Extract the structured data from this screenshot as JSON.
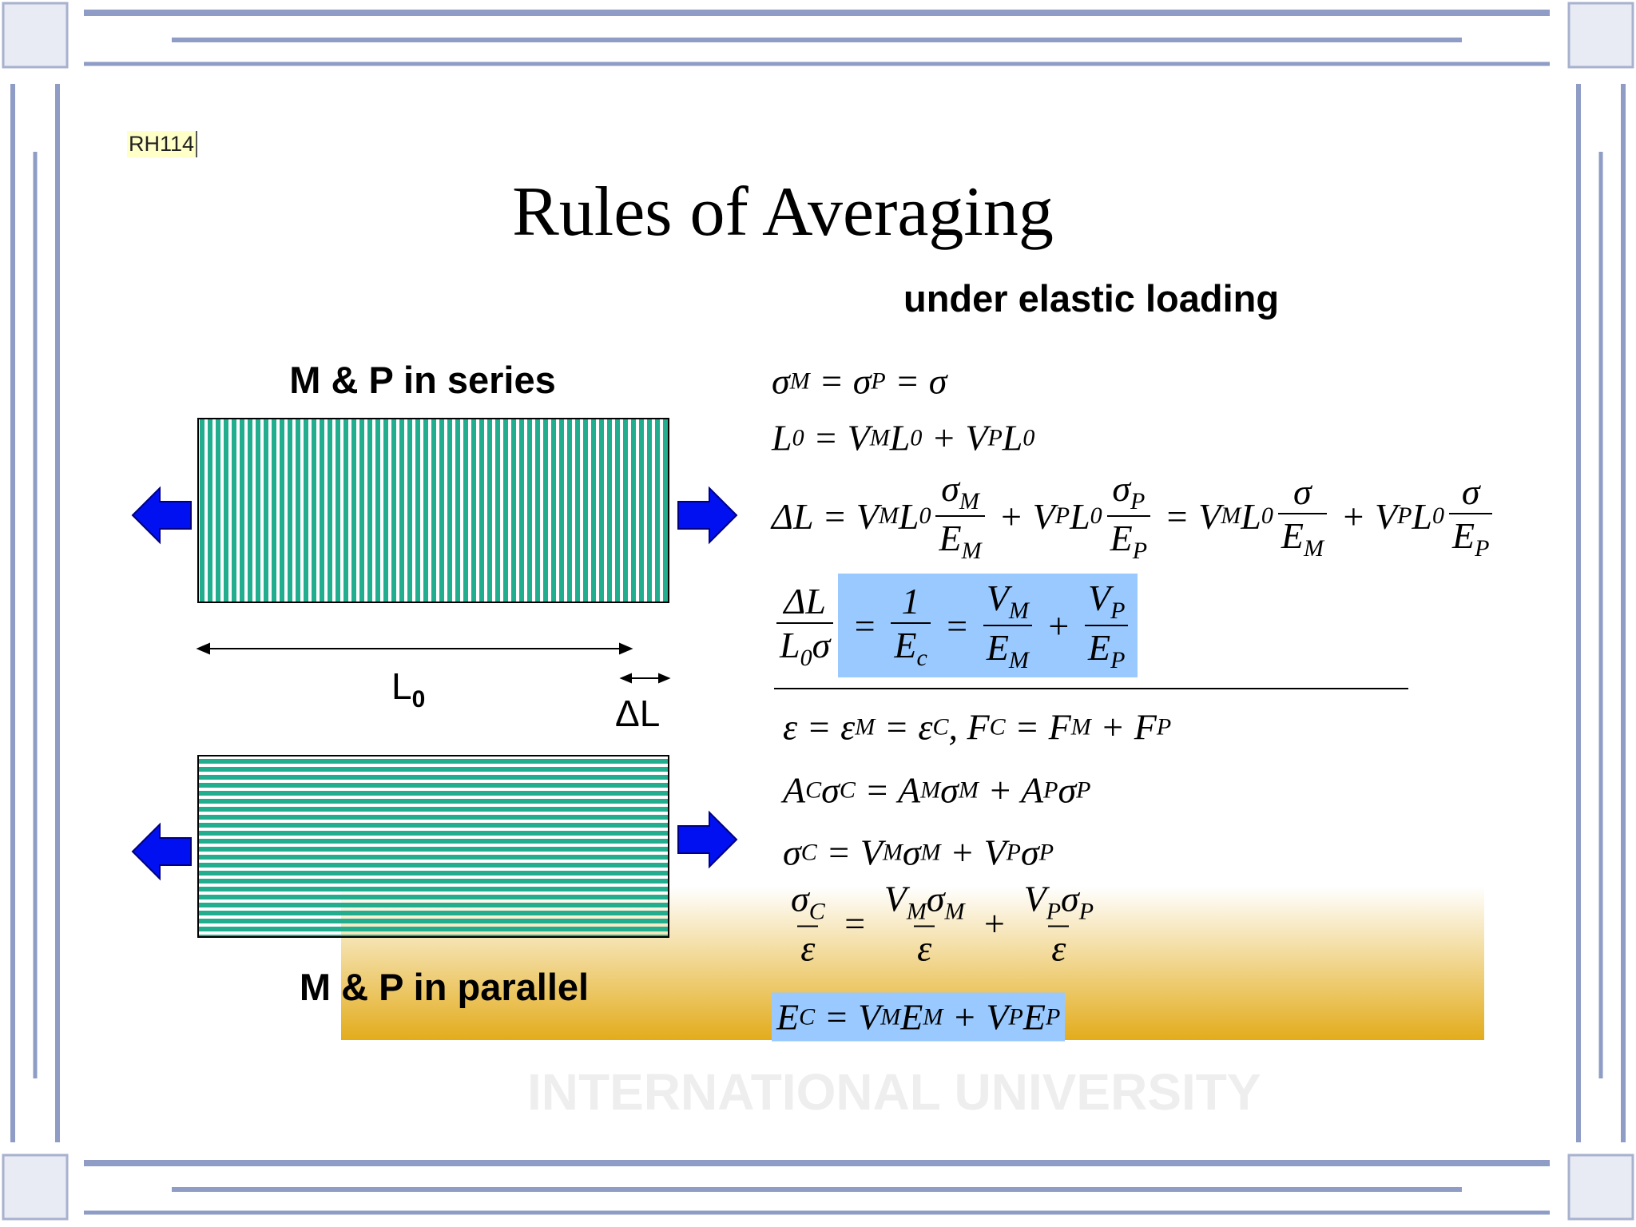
{
  "tag": "RH114",
  "title": "Rules of Averaging",
  "subtitle": "under elastic loading",
  "series": {
    "label": "M & P in series",
    "length": [
      "L",
      {
        "sub": "0"
      }
    ],
    "delta": "ΔL"
  },
  "parallel": {
    "label": "M & P in parallel"
  },
  "watermark": "INTERNATIONAL UNIVERSITY",
  "equations": [
    [
      "σ",
      {
        "sub": "M"
      },
      " = σ",
      {
        "sub": "P"
      },
      " = σ"
    ],
    [
      "L",
      {
        "sub": "0"
      },
      " = V",
      {
        "sub": "M"
      },
      "L",
      {
        "sub": "0"
      },
      " + V",
      {
        "sub": "P"
      },
      "L",
      {
        "sub": "0"
      }
    ],
    [
      "ΔL = V",
      {
        "sub": "M"
      },
      "L",
      {
        "sub": "0"
      },
      {
        "frac": [
          [
            "σ",
            {
              "sub": "M"
            }
          ],
          [
            "E",
            {
              "sub": "M"
            }
          ]
        ]
      },
      " + V",
      {
        "sub": "P"
      },
      "L",
      {
        "sub": "0"
      },
      {
        "frac": [
          [
            "σ",
            {
              "sub": "P"
            }
          ],
          [
            "E",
            {
              "sub": "P"
            }
          ]
        ]
      },
      " = V",
      {
        "sub": "M"
      },
      "L",
      {
        "sub": "0"
      },
      {
        "frac": [
          [
            "σ"
          ],
          [
            "E",
            {
              "sub": "M"
            }
          ]
        ]
      },
      " + V",
      {
        "sub": "P"
      },
      "L",
      {
        "sub": "0"
      },
      {
        "frac": [
          [
            "σ"
          ],
          [
            "E",
            {
              "sub": "P"
            }
          ]
        ]
      }
    ],
    [
      {
        "frac": [
          [
            "ΔL"
          ],
          [
            "L",
            {
              "sub": "0"
            },
            "σ"
          ]
        ]
      },
      {
        "box": [
          " = ",
          {
            "frac": [
              [
                "1"
              ],
              [
                "E",
                {
                  "sub": "c"
                }
              ]
            ]
          },
          " = ",
          {
            "frac": [
              [
                "V",
                {
                  "sub": "M"
                }
              ],
              [
                "E",
                {
                  "sub": "M"
                }
              ]
            ]
          },
          " + ",
          {
            "frac": [
              [
                "V",
                {
                  "sub": "P"
                }
              ],
              [
                "E",
                {
                  "sub": "P"
                }
              ]
            ]
          }
        ]
      }
    ],
    [
      "ε = ε",
      {
        "sub": "M"
      },
      " = ε",
      {
        "sub": "C"
      },
      ", F",
      {
        "sub": "C"
      },
      " = F",
      {
        "sub": "M"
      },
      " + F",
      {
        "sub": "P"
      }
    ],
    [
      "A",
      {
        "sub": "C"
      },
      "σ",
      {
        "sub": "C"
      },
      " = A",
      {
        "sub": "M"
      },
      "σ",
      {
        "sub": "M"
      },
      " + A",
      {
        "sub": "P"
      },
      "σ",
      {
        "sub": "P"
      }
    ],
    [
      "σ",
      {
        "sub": "C"
      },
      " = V",
      {
        "sub": "M"
      },
      "σ",
      {
        "sub": "M"
      },
      " + V",
      {
        "sub": "P"
      },
      "σ",
      {
        "sub": "P"
      }
    ],
    [
      {
        "frac": [
          [
            "σ",
            {
              "sub": "C"
            }
          ],
          [
            "ε"
          ]
        ]
      },
      " = ",
      {
        "frac": [
          [
            "V",
            {
              "sub": "M"
            },
            "σ",
            {
              "sub": "M"
            }
          ],
          [
            "ε"
          ]
        ]
      },
      " + ",
      {
        "frac": [
          [
            "V",
            {
              "sub": "P"
            },
            "σ",
            {
              "sub": "P"
            }
          ],
          [
            "ε"
          ]
        ]
      }
    ],
    [
      {
        "box": [
          "E",
          {
            "sub": "C"
          },
          " = V",
          {
            "sub": "M"
          },
          "E",
          {
            "sub": "M"
          },
          " + V",
          {
            "sub": "P"
          },
          "E",
          {
            "sub": "P"
          }
        ]
      }
    ]
  ]
}
